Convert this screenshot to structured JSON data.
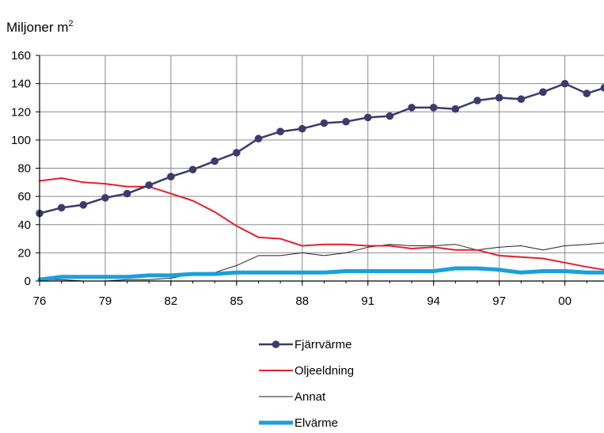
{
  "chart_data": {
    "type": "line",
    "ylabel": "Miljoner m",
    "ylabel_superscript": "2",
    "xlabel": "",
    "ylim": [
      0,
      160
    ],
    "yticks": [
      0,
      20,
      40,
      60,
      80,
      100,
      120,
      140,
      160
    ],
    "xlim": [
      1976,
      2001.8
    ],
    "xticks": [
      {
        "value": 1976,
        "label": "76"
      },
      {
        "value": 1979,
        "label": "79"
      },
      {
        "value": 1982,
        "label": "82"
      },
      {
        "value": 1985,
        "label": "85"
      },
      {
        "value": 1988,
        "label": "88"
      },
      {
        "value": 1991,
        "label": "91"
      },
      {
        "value": 1994,
        "label": "94"
      },
      {
        "value": 1997,
        "label": "97"
      },
      {
        "value": 2000,
        "label": "00"
      }
    ],
    "grid": true,
    "legend_position": "bottom-center",
    "series": [
      {
        "name": "Fjärrvärme",
        "color": "#3d3a6e",
        "markers": true,
        "points": [
          [
            1976,
            48
          ],
          [
            1977,
            52
          ],
          [
            1978,
            54
          ],
          [
            1979,
            59
          ],
          [
            1980,
            62
          ],
          [
            1981,
            68
          ],
          [
            1982,
            74
          ],
          [
            1983,
            79
          ],
          [
            1984,
            85
          ],
          [
            1985,
            91
          ],
          [
            1986,
            101
          ],
          [
            1987,
            106
          ],
          [
            1988,
            108
          ],
          [
            1989,
            112
          ],
          [
            1990,
            113
          ],
          [
            1991,
            116
          ],
          [
            1992,
            117
          ],
          [
            1993,
            123
          ],
          [
            1994,
            123
          ],
          [
            1995,
            122
          ],
          [
            1996,
            128
          ],
          [
            1997,
            130
          ],
          [
            1998,
            129
          ],
          [
            1999,
            134
          ],
          [
            2000,
            140
          ],
          [
            2001,
            133
          ],
          [
            2001.8,
            137
          ]
        ]
      },
      {
        "name": "Oljeeldning",
        "color": "#e4202e",
        "markers": false,
        "points": [
          [
            1976,
            71
          ],
          [
            1977,
            73
          ],
          [
            1978,
            70
          ],
          [
            1979,
            69
          ],
          [
            1980,
            67
          ],
          [
            1981,
            67
          ],
          [
            1982,
            62
          ],
          [
            1983,
            57
          ],
          [
            1984,
            49
          ],
          [
            1985,
            39
          ],
          [
            1986,
            31
          ],
          [
            1987,
            30
          ],
          [
            1988,
            25
          ],
          [
            1989,
            26
          ],
          [
            1990,
            26
          ],
          [
            1991,
            25
          ],
          [
            1992,
            25
          ],
          [
            1993,
            23
          ],
          [
            1994,
            24
          ],
          [
            1995,
            22
          ],
          [
            1996,
            22
          ],
          [
            1997,
            18
          ],
          [
            1998,
            17
          ],
          [
            1999,
            16
          ],
          [
            2000,
            13
          ],
          [
            2001,
            10
          ],
          [
            2001.8,
            8
          ]
        ]
      },
      {
        "name": "Annat",
        "color": "#222222",
        "markers": false,
        "points": [
          [
            1976,
            1
          ],
          [
            1977,
            1
          ],
          [
            1978,
            0
          ],
          [
            1979,
            0
          ],
          [
            1980,
            1
          ],
          [
            1981,
            1
          ],
          [
            1982,
            2
          ],
          [
            1983,
            5
          ],
          [
            1984,
            6
          ],
          [
            1985,
            11
          ],
          [
            1986,
            18
          ],
          [
            1987,
            18
          ],
          [
            1988,
            20
          ],
          [
            1989,
            18
          ],
          [
            1990,
            20
          ],
          [
            1991,
            24
          ],
          [
            1992,
            26
          ],
          [
            1993,
            25
          ],
          [
            1994,
            25
          ],
          [
            1995,
            26
          ],
          [
            1996,
            22
          ],
          [
            1997,
            24
          ],
          [
            1998,
            25
          ],
          [
            1999,
            22
          ],
          [
            2000,
            25
          ],
          [
            2001,
            26
          ],
          [
            2001.8,
            27
          ]
        ]
      },
      {
        "name": "Elvärme",
        "color": "#1aa0dc",
        "markers": false,
        "points": [
          [
            1976,
            1
          ],
          [
            1977,
            3
          ],
          [
            1978,
            3
          ],
          [
            1979,
            3
          ],
          [
            1980,
            3
          ],
          [
            1981,
            4
          ],
          [
            1982,
            4
          ],
          [
            1983,
            5
          ],
          [
            1984,
            5
          ],
          [
            1985,
            6
          ],
          [
            1986,
            6
          ],
          [
            1987,
            6
          ],
          [
            1988,
            6
          ],
          [
            1989,
            6
          ],
          [
            1990,
            7
          ],
          [
            1991,
            7
          ],
          [
            1992,
            7
          ],
          [
            1993,
            7
          ],
          [
            1994,
            7
          ],
          [
            1995,
            9
          ],
          [
            1996,
            9
          ],
          [
            1997,
            8
          ],
          [
            1998,
            6
          ],
          [
            1999,
            7
          ],
          [
            2000,
            7
          ],
          [
            2001,
            6
          ],
          [
            2001.8,
            6
          ]
        ]
      }
    ]
  }
}
